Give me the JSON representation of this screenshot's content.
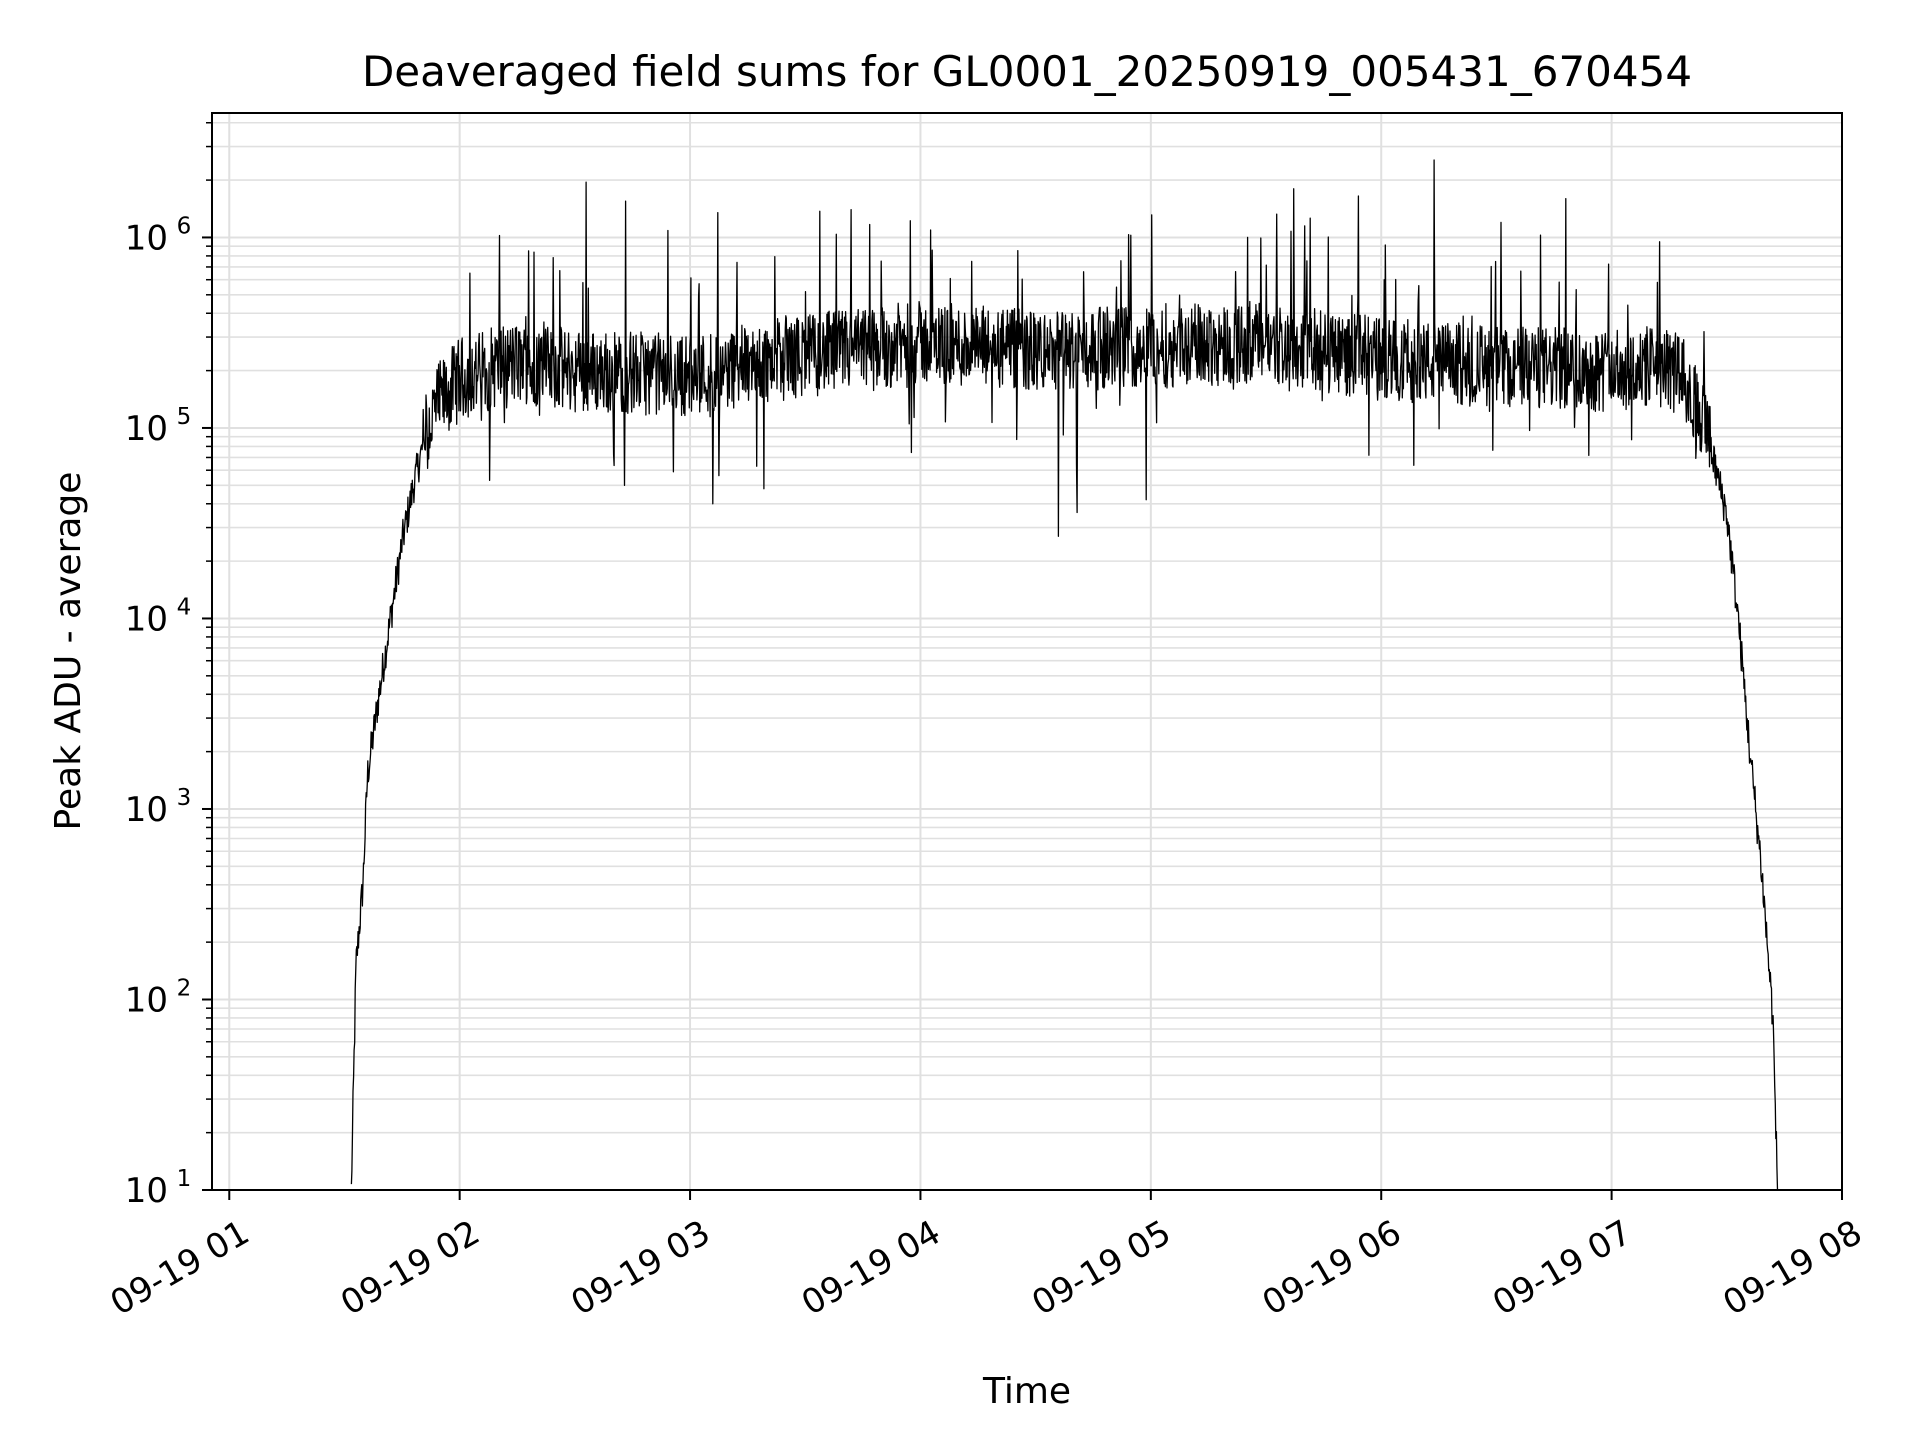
{
  "chart_data": {
    "type": "line",
    "title": "Deaveraged field sums for GL0001_20250919_005431_670454",
    "xlabel": "Time",
    "ylabel": "Peak ADU - average",
    "yscale": "log",
    "ylim": [
      10,
      4500000
    ],
    "xlim_hours": [
      0.925,
      8.0
    ],
    "grid": true,
    "line_color": "#000000",
    "grid_color": "#e0e0e0",
    "x_ticks": [
      {
        "hour": 1,
        "label": "09-19 01"
      },
      {
        "hour": 2,
        "label": "09-19 02"
      },
      {
        "hour": 3,
        "label": "09-19 03"
      },
      {
        "hour": 4,
        "label": "09-19 04"
      },
      {
        "hour": 5,
        "label": "09-19 05"
      },
      {
        "hour": 6,
        "label": "09-19 06"
      },
      {
        "hour": 7,
        "label": "09-19 07"
      },
      {
        "hour": 8,
        "label": "09-19 08"
      }
    ],
    "y_ticks": [
      {
        "value": 10,
        "base": "10",
        "exp": "1"
      },
      {
        "value": 100,
        "base": "10",
        "exp": "2"
      },
      {
        "value": 1000,
        "base": "10",
        "exp": "3"
      },
      {
        "value": 10000,
        "base": "10",
        "exp": "4"
      },
      {
        "value": 100000,
        "base": "10",
        "exp": "5"
      },
      {
        "value": 1000000,
        "base": "10",
        "exp": "6"
      }
    ],
    "series": [
      {
        "name": "deaveraged field sum",
        "profile_hours": [
          1.53,
          1.55,
          1.58,
          1.6,
          1.65,
          1.7,
          1.75,
          1.8,
          1.85,
          1.9,
          2.0,
          2.2,
          2.5,
          3.0,
          3.5,
          4.0,
          4.5,
          5.0,
          5.5,
          6.0,
          6.5,
          7.0,
          7.2,
          7.3,
          7.4,
          7.5,
          7.55,
          7.6,
          7.65,
          7.7,
          7.72
        ],
        "profile_values": [
          10,
          150,
          400,
          1500,
          4000,
          10000,
          25000,
          50000,
          90000,
          130000,
          180000,
          220000,
          200000,
          190000,
          240000,
          280000,
          250000,
          270000,
          280000,
          230000,
          210000,
          200000,
          210000,
          190000,
          110000,
          35000,
          10000,
          2000,
          500,
          80,
          10
        ],
        "spikes": [
          {
            "hour": 2.3,
            "value": 850000
          },
          {
            "hour": 2.55,
            "value": 1950000
          },
          {
            "hour": 2.72,
            "value": 1550000
          },
          {
            "hour": 3.12,
            "value": 1350000
          },
          {
            "hour": 3.7,
            "value": 1400000
          },
          {
            "hour": 5.42,
            "value": 1000000
          },
          {
            "hour": 5.62,
            "value": 1800000
          },
          {
            "hour": 5.9,
            "value": 1650000
          },
          {
            "hour": 6.23,
            "value": 2550000
          },
          {
            "hour": 6.52,
            "value": 1200000
          },
          {
            "hour": 6.8,
            "value": 1600000
          },
          {
            "hour": 4.6,
            "value": 27000
          },
          {
            "hour": 3.1,
            "value": 40000
          },
          {
            "hour": 3.32,
            "value": 48000
          },
          {
            "hour": 4.98,
            "value": 42000
          },
          {
            "hour": 4.68,
            "value": 36000
          }
        ]
      }
    ]
  }
}
